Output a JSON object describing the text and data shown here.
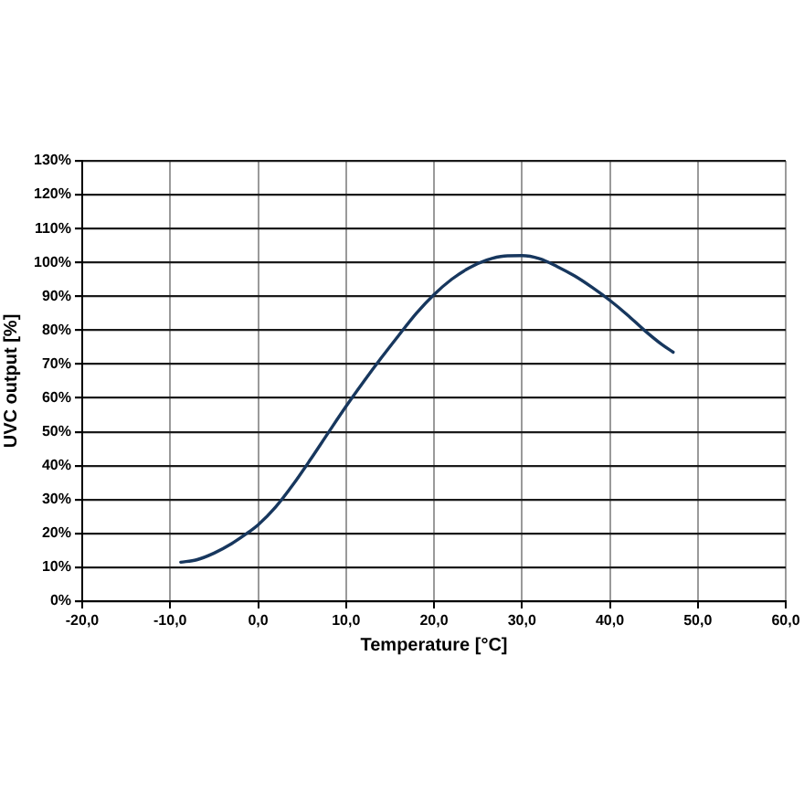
{
  "chart_data": {
    "type": "line",
    "xlabel": "Temperature [°C]",
    "ylabel": "UVC output [%]",
    "x": [
      -8.8,
      -7,
      -5,
      -3,
      -1,
      0,
      2,
      4,
      6,
      8,
      10,
      12,
      14,
      16,
      18,
      20,
      22,
      24,
      26,
      28,
      30,
      32,
      34,
      36,
      38,
      40,
      42,
      44,
      46,
      47.2
    ],
    "values": [
      11.5,
      12.2,
      14.2,
      17,
      20.5,
      22.5,
      27.8,
      34.5,
      42,
      49.8,
      57.5,
      64.8,
      71.8,
      78.5,
      85,
      90.5,
      95,
      98.4,
      100.7,
      101.9,
      102,
      101.1,
      98.8,
      96,
      92.6,
      88.8,
      84.5,
      79.8,
      75.6,
      73.5
    ],
    "color": "#17375e",
    "xlim": [
      -20,
      60
    ],
    "xticks": [
      {
        "value": -20,
        "label": "-20,0"
      },
      {
        "value": -10,
        "label": "-10,0"
      },
      {
        "value": 0,
        "label": "0,0"
      },
      {
        "value": 10,
        "label": "10,0"
      },
      {
        "value": 20,
        "label": "20,0"
      },
      {
        "value": 30,
        "label": "30,0"
      },
      {
        "value": 40,
        "label": "40,0"
      },
      {
        "value": 50,
        "label": "50,0"
      },
      {
        "value": 60,
        "label": "60,0"
      }
    ],
    "ylim": [
      0,
      130
    ],
    "yticks": [
      {
        "value": 0,
        "label": "0%"
      },
      {
        "value": 10,
        "label": "10%"
      },
      {
        "value": 20,
        "label": "20%"
      },
      {
        "value": 30,
        "label": "30%"
      },
      {
        "value": 40,
        "label": "40%"
      },
      {
        "value": 50,
        "label": "50%"
      },
      {
        "value": 60,
        "label": "60%"
      },
      {
        "value": 70,
        "label": "70%"
      },
      {
        "value": 80,
        "label": "80%"
      },
      {
        "value": 90,
        "label": "90%"
      },
      {
        "value": 100,
        "label": "100%"
      },
      {
        "value": 110,
        "label": "110%"
      },
      {
        "value": 120,
        "label": "120%"
      },
      {
        "value": 130,
        "label": "130%"
      }
    ],
    "grid": true,
    "marker": "none",
    "line_style": "solid"
  }
}
